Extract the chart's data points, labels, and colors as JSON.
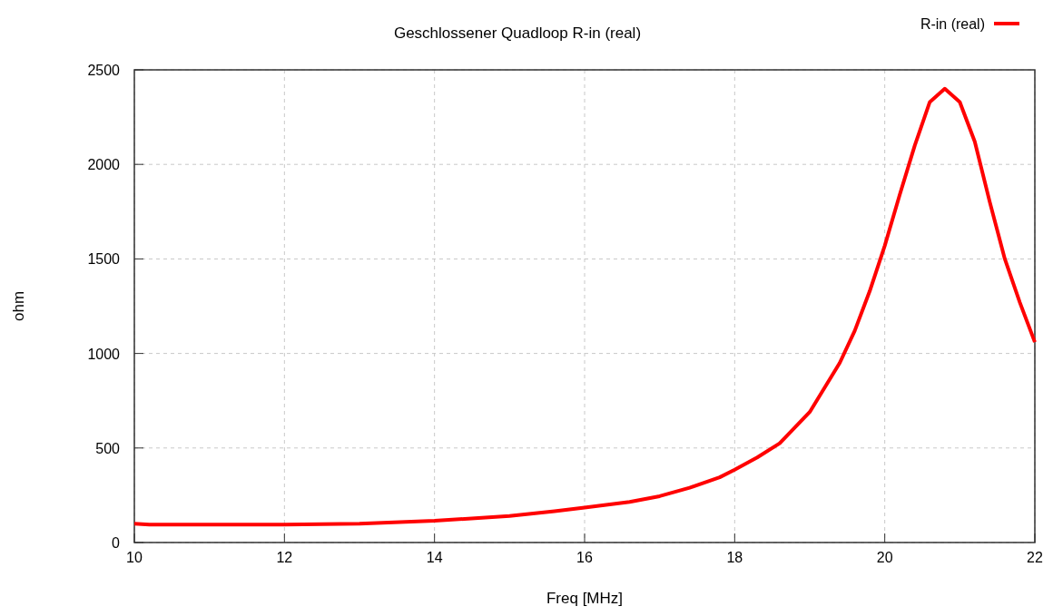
{
  "chart_data": {
    "type": "line",
    "title": "Geschlossener Quadloop R-in (real)",
    "xlabel": "Freq [MHz]",
    "ylabel": "ohm",
    "x": [
      10,
      10.2,
      11,
      12,
      13,
      14,
      15,
      15.6,
      16,
      16.6,
      17,
      17.4,
      17.8,
      18,
      18.3,
      18.6,
      19,
      19.4,
      19.6,
      19.8,
      20,
      20.2,
      20.4,
      20.6,
      20.8,
      21,
      21.2,
      21.4,
      21.6,
      21.8,
      22
    ],
    "series": [
      {
        "name": "R-in (real)",
        "color": "#ff0000",
        "values": [
          100,
          95,
          95,
          95,
          100,
          115,
          140,
          165,
          185,
          215,
          245,
          290,
          345,
          385,
          450,
          525,
          690,
          950,
          1120,
          1330,
          1570,
          1840,
          2100,
          2330,
          2400,
          2330,
          2120,
          1800,
          1500,
          1270,
          1060
        ]
      }
    ],
    "xlim": [
      10,
      22
    ],
    "xticks": [
      10,
      12,
      14,
      16,
      18,
      20,
      22
    ],
    "ylim": [
      0,
      2500
    ],
    "yticks": [
      0,
      500,
      1000,
      1500,
      2000,
      2500
    ],
    "grid": true,
    "legend": "top right",
    "line_style": "solid",
    "marker": "none"
  }
}
